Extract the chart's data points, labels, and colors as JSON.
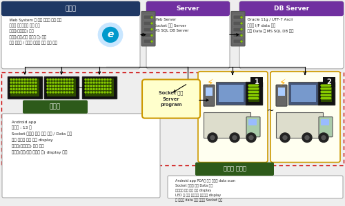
{
  "bg_color": "#f0f0f0",
  "kanrija_text": "  Web System 을 통한 시스템 환경 설정\n  전광판 설치위치별 화면 설정\n  메시지(공지사항) 등록\n  이미지(공지/행사 이미지 등) 등록\n  현재 전광관 / 도크벨 모니터 가동 현황 체크",
  "server_text": "  Web Server\n  Socket 통신 Server\n  MS SQL DB Server",
  "dbserver_text": "  Oracle 11g / UTF-7 Ascii\n  전광판 I/F data 관리\n  기타 Data 는 MS SQL DB 활용",
  "jeonkwangban_desc": "  Android app\n  장비수 : 13 대\n  Socket 통신을 통한 설정 정보 / Data 전달\n  설치 위치별 다른 화면 display\n  메시지(공지사항) 출력 기능\n  이미지(공지/행사 이미지 등) display 기능",
  "dockel_desc": "  Android app PDA를 통한 바코드 data scan\n  Socket 통신을 통한 Data 교환\n  모니터를 통한 상품 정보 display\n  LED 를 통한 대기요청 차량번호 display\n  각 장비별 data 교환 방식은 Socket 통신",
  "socket_text": "Socket 통신\nServer\nprogram"
}
